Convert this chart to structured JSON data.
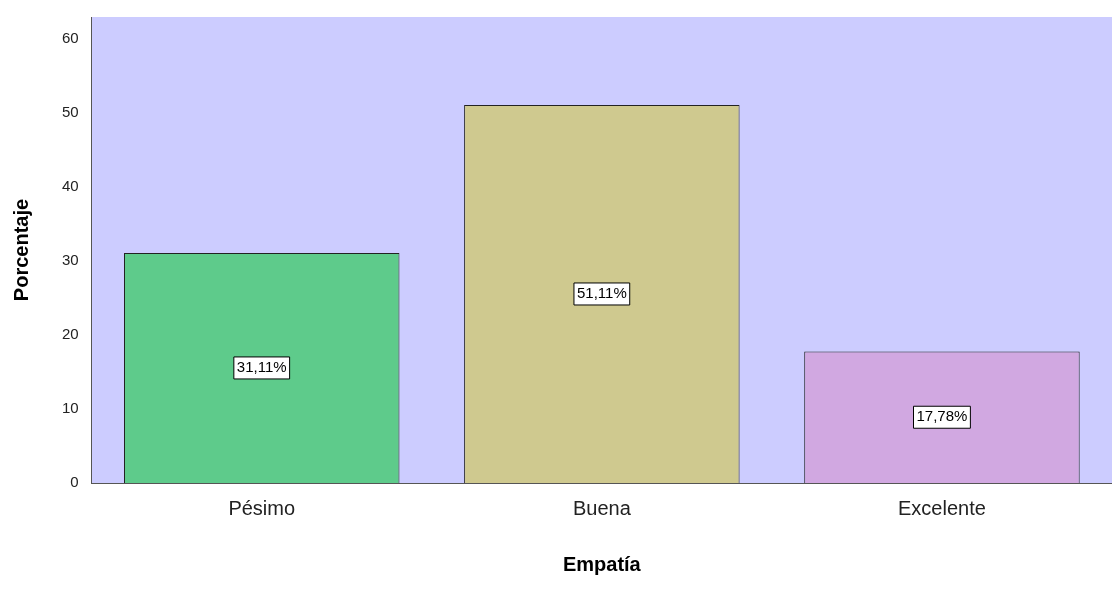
{
  "chart_data": {
    "type": "bar",
    "xlabel": "Empatía",
    "ylabel": "Porcentaje",
    "categories": [
      "Pésimo",
      "Buena",
      "Excelente"
    ],
    "values": [
      31.11,
      51.11,
      17.78
    ],
    "colors": [
      "#5ecb8b",
      "#cfc98f",
      "#d1a8e1"
    ],
    "value_labels": [
      "31,11%",
      "51,11%",
      "17,78%"
    ],
    "ylim": [
      0,
      63
    ],
    "yticks": [
      0,
      10,
      20,
      30,
      40,
      50,
      60
    ],
    "grid": false,
    "legend": false
  }
}
